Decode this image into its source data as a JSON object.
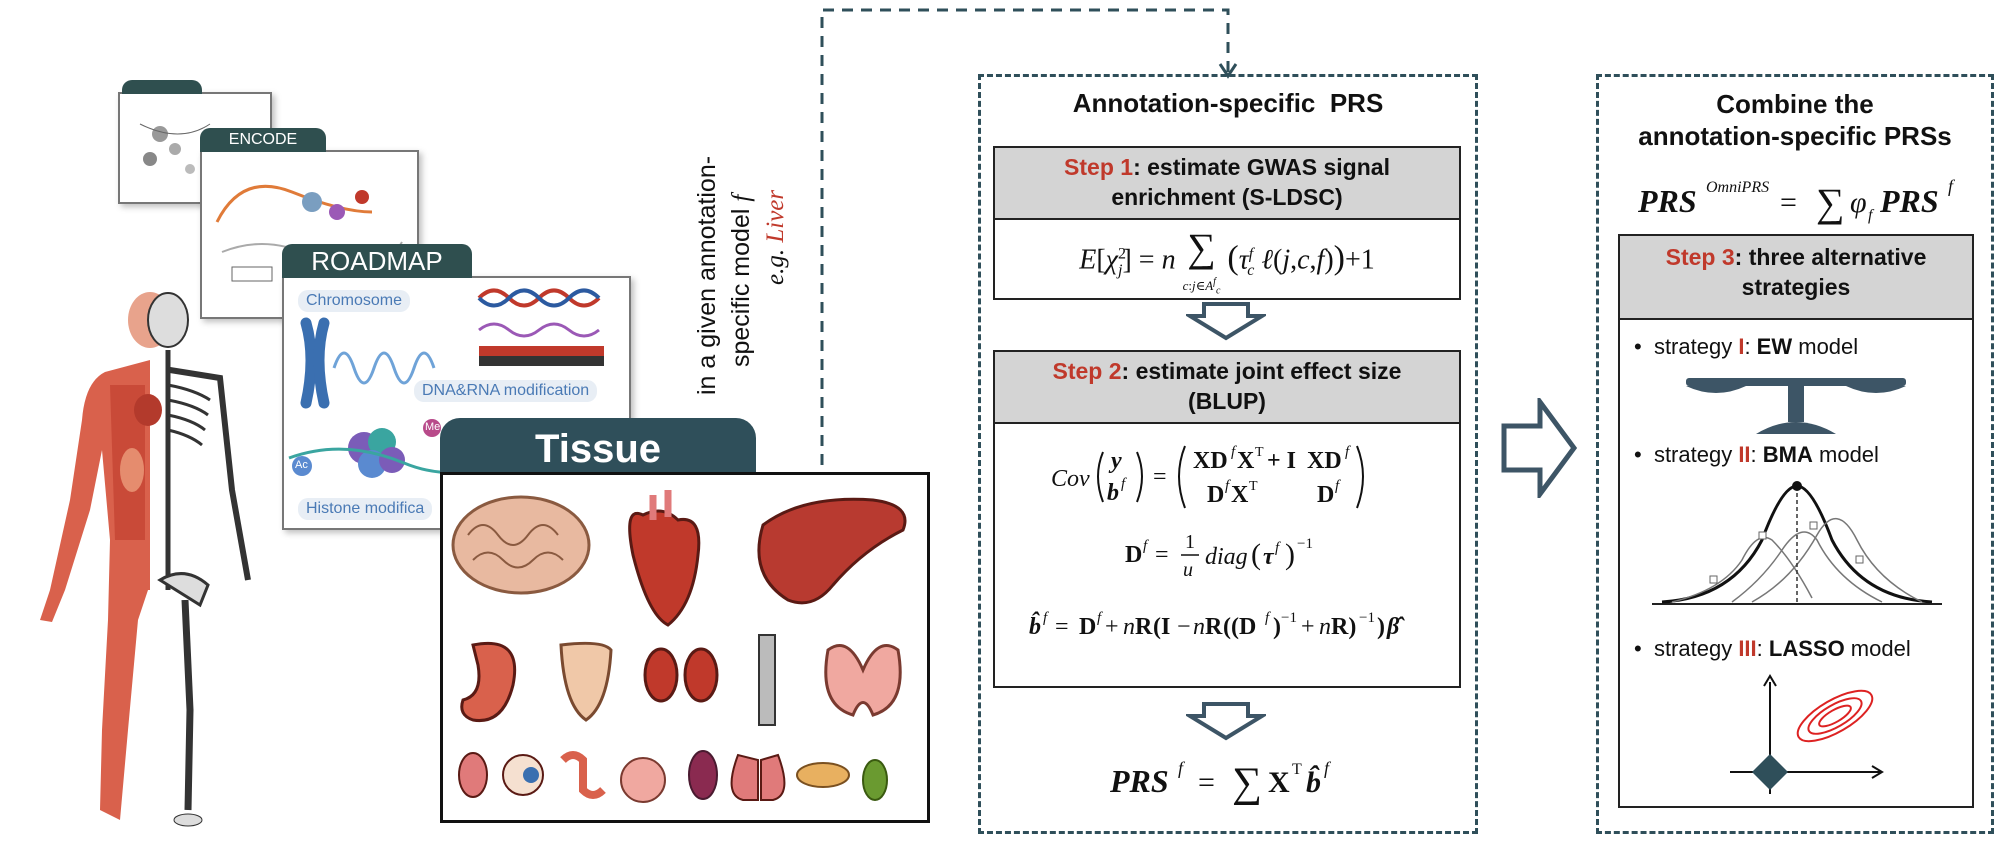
{
  "left": {
    "cards": {
      "encode": "ENCODE",
      "roadmap": "ROADMAP",
      "roadmap_chromosome": "Chromosome",
      "roadmap_dna": "DNA&RNA modification",
      "roadmap_histone": "Histone modifica",
      "roadmap_me": "Me",
      "roadmap_ac": "Ac",
      "tissue": "Tissue"
    },
    "vertical_label_line1": "in a given annotation-",
    "vertical_label_line2": "specific model",
    "vertical_label_f": "f",
    "vertical_label_eg": "e.g.",
    "vertical_label_liver": "Liver"
  },
  "middle": {
    "title": "Annotation-specific  PRS",
    "step1": {
      "label": "Step 1",
      "text": ": estimate GWAS signal",
      "text2": "enrichment (S-LDSC)"
    },
    "step2": {
      "label": "Step 2",
      "text": ": estimate joint effect size",
      "text2": "(BLUP)"
    }
  },
  "right": {
    "title_line1": "Combine the",
    "title_line2": "annotation-specific PRSs",
    "step3": {
      "label": "Step 3",
      "text": ": three alternative",
      "text2": "strategies"
    },
    "strategies": [
      {
        "prefix": "strategy ",
        "roman": "I",
        "sep": ": ",
        "name": "EW",
        "suffix": " model"
      },
      {
        "prefix": "strategy ",
        "roman": "II",
        "sep": ": ",
        "name": "BMA",
        "suffix": " model"
      },
      {
        "prefix": "strategy ",
        "roman": "III",
        "sep": ": ",
        "name": "LASSO",
        "suffix": " model"
      }
    ]
  },
  "colors": {
    "accent_red": "#c0392b",
    "dark_teal": "#2f4f4f",
    "dashed": "#2f4f5a",
    "step_header_gray": "#d4d4d4",
    "arrow": "#3d5566"
  }
}
